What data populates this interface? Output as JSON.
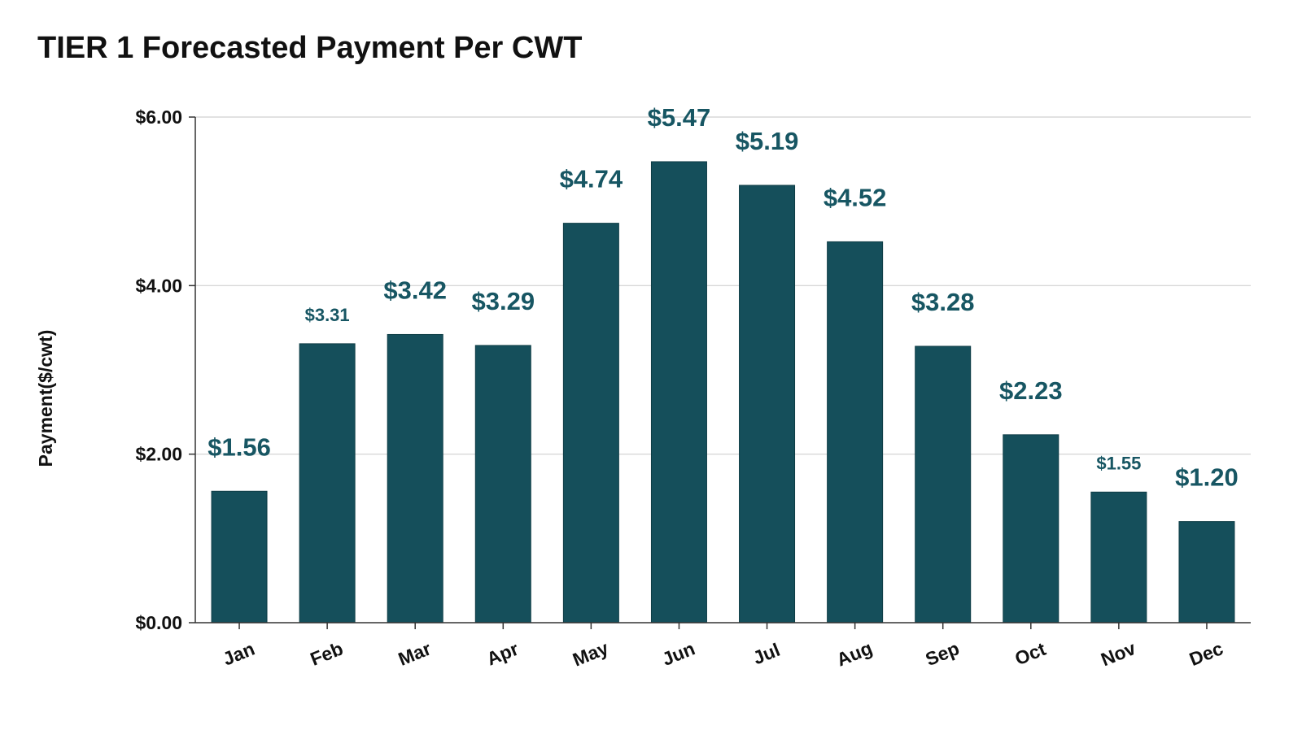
{
  "chart_data": {
    "type": "bar",
    "title": "TIER 1 Forecasted Payment Per CWT",
    "xlabel": "",
    "ylabel": "Payment($/cwt)",
    "categories": [
      "Jan",
      "Feb",
      "Mar",
      "Apr",
      "May",
      "Jun",
      "Jul",
      "Aug",
      "Sep",
      "Oct",
      "Nov",
      "Dec"
    ],
    "values": [
      1.56,
      3.31,
      3.42,
      3.29,
      4.74,
      5.47,
      5.19,
      4.52,
      3.28,
      2.23,
      1.55,
      1.2
    ],
    "data_labels": [
      "$1.56",
      "$3.31",
      "$3.42",
      "$3.29",
      "$4.74",
      "$5.47",
      "$5.19",
      "$4.52",
      "$3.28",
      "$2.23",
      "$1.55",
      "$1.20"
    ],
    "small_labels": [
      "Feb",
      "Nov"
    ],
    "yticks": [
      0,
      2,
      4,
      6
    ],
    "ytick_labels": [
      "$0.00",
      "$2.00",
      "$4.00",
      "$6.00"
    ],
    "ylim": [
      0,
      6
    ],
    "grid": true,
    "bar_color": "#154f5b",
    "label_color": "#175663",
    "grid_color": "#d0d0d0"
  }
}
